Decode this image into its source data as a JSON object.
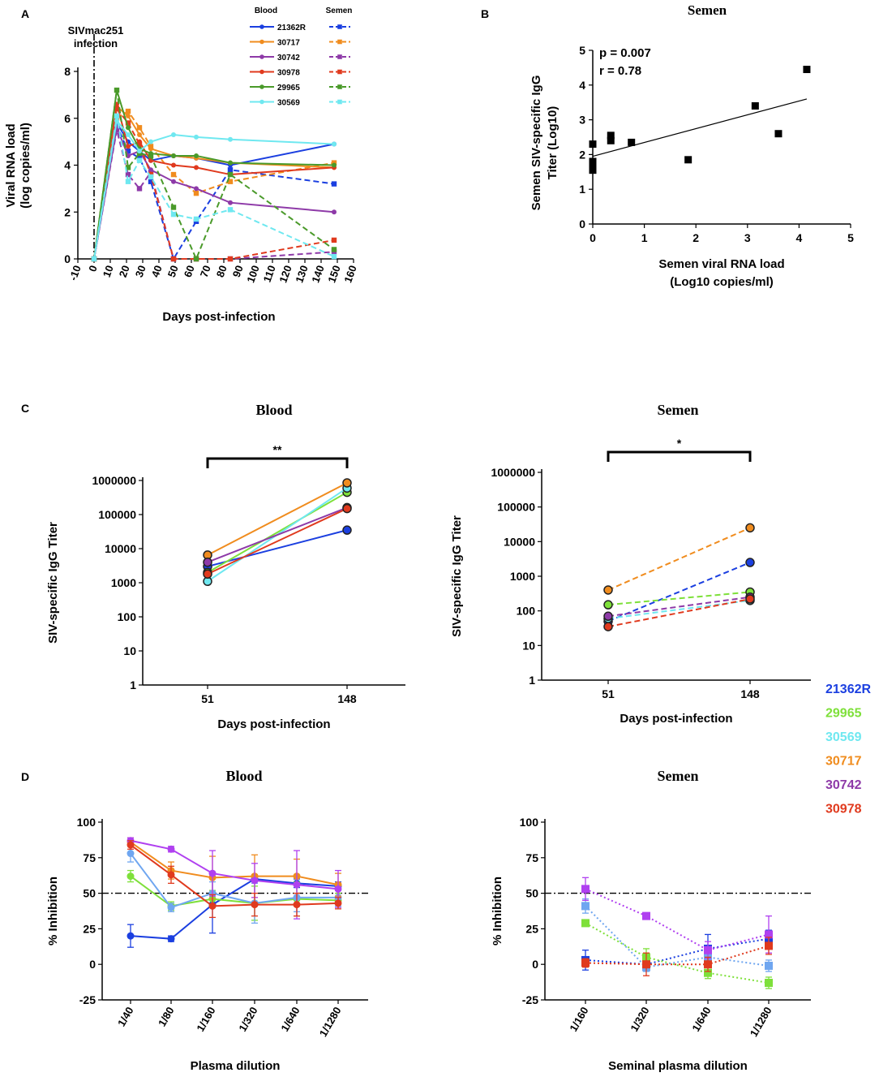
{
  "panels": {
    "A": "A",
    "B": "B",
    "C": "C",
    "D": "D"
  },
  "colors": {
    "21362R": "#1b3fe0",
    "30717": "#f08c1e",
    "30742": "#8e3aa8",
    "30978": "#e03a1e",
    "29965": "#4a9a2a",
    "30569": "#6fe8f0"
  },
  "chart_data": [
    {
      "id": "A",
      "type": "line",
      "title": "",
      "annotation": "SIVmac251\ninfection",
      "xlabel": "Days post-infection",
      "ylabel": "Viral RNA load (log copies/ml)",
      "xlim": [
        -10,
        160
      ],
      "ylim": [
        0,
        8
      ],
      "xticks": [
        "-10",
        "0",
        "10",
        "20",
        "30",
        "40",
        "50",
        "60",
        "70",
        "80",
        "90",
        "100",
        "110",
        "120",
        "130",
        "140",
        "150",
        "160"
      ],
      "yticks": [
        "0",
        "2",
        "4",
        "6",
        "8"
      ],
      "legend_headers": [
        "Blood",
        "Semen"
      ],
      "x": [
        0,
        14,
        21,
        28,
        35,
        49,
        63,
        84,
        148
      ],
      "series": [
        {
          "name": "21362R",
          "color": "#1b3fe0",
          "blood": [
            0,
            5.8,
            5.0,
            4.6,
            4.2,
            4.4,
            4.3,
            4.0,
            4.9
          ],
          "semen": [
            0,
            5.7,
            4.6,
            4.3,
            3.3,
            0,
            1.6,
            3.8,
            3.2
          ]
        },
        {
          "name": "30717",
          "color": "#f08c1e",
          "blood": [
            0,
            6.5,
            6.1,
            5.3,
            4.7,
            4.4,
            4.3,
            4.1,
            3.9
          ],
          "semen": [
            0,
            6.0,
            6.3,
            5.6,
            4.8,
            3.6,
            2.8,
            3.3,
            4.1
          ]
        },
        {
          "name": "30742",
          "color": "#8e3aa8",
          "blood": [
            0,
            5.6,
            4.4,
            4.6,
            3.8,
            3.3,
            3.0,
            2.4,
            2.0
          ],
          "semen": [
            0,
            5.5,
            3.6,
            3.0,
            3.7,
            0,
            0,
            0,
            0.3
          ]
        },
        {
          "name": "30978",
          "color": "#e03a1e",
          "blood": [
            0,
            6.6,
            4.8,
            5.0,
            4.2,
            4.0,
            3.9,
            3.6,
            3.9
          ],
          "semen": [
            0,
            6.4,
            5.8,
            4.9,
            3.6,
            0,
            0,
            0,
            0.8
          ]
        },
        {
          "name": "29965",
          "color": "#4a9a2a",
          "blood": [
            0,
            7.2,
            5.6,
            4.7,
            4.5,
            4.4,
            4.4,
            4.1,
            4.0
          ],
          "semen": [
            0,
            7.2,
            3.9,
            4.5,
            4.4,
            2.2,
            0,
            3.6,
            0.4
          ]
        },
        {
          "name": "30569",
          "color": "#6fe8f0",
          "blood": [
            0,
            5.9,
            5.3,
            4.6,
            5.0,
            5.3,
            5.2,
            5.1,
            4.9
          ],
          "semen": [
            0,
            6.1,
            3.3,
            4.2,
            3.5,
            1.9,
            1.7,
            2.1,
            0.1
          ]
        }
      ]
    },
    {
      "id": "B",
      "type": "scatter",
      "title": "Semen",
      "xlabel": "Semen viral RNA load\n(Log10 copies/ml)",
      "ylabel": "Semen SIV-specific IgG\nTiter (Log10)",
      "xlim": [
        0,
        5
      ],
      "ylim": [
        0,
        5
      ],
      "xticks": [
        "0",
        "1",
        "2",
        "3",
        "4",
        "5"
      ],
      "yticks": [
        "0",
        "1",
        "2",
        "3",
        "4",
        "5"
      ],
      "stats": [
        "p = 0.007",
        "r = 0.78"
      ],
      "points": [
        [
          0,
          2.3
        ],
        [
          0,
          1.8
        ],
        [
          0,
          1.65
        ],
        [
          0,
          1.55
        ],
        [
          0.35,
          2.55
        ],
        [
          0.35,
          2.4
        ],
        [
          0.75,
          2.35
        ],
        [
          1.85,
          1.85
        ],
        [
          3.15,
          3.4
        ],
        [
          3.6,
          2.6
        ],
        [
          4.15,
          4.45
        ]
      ],
      "fit": [
        [
          0,
          1.95
        ],
        [
          4.15,
          3.6
        ]
      ]
    },
    {
      "id": "C-blood",
      "type": "line",
      "title": "Blood",
      "xlabel": "Days post-infection",
      "ylabel": "SIV-specific IgG Titer",
      "categories": [
        "51",
        "148"
      ],
      "significance": "**",
      "log_y": true,
      "yticks": [
        "1",
        "10",
        "100",
        "1000",
        "10000",
        "100000",
        "1000000"
      ],
      "series": [
        {
          "name": "21362R",
          "color": "#1b3fe0",
          "values": [
            3000,
            35000
          ]
        },
        {
          "name": "29965",
          "color": "#7ee03a",
          "values": [
            2000,
            450000
          ]
        },
        {
          "name": "30569",
          "color": "#6fe8f0",
          "values": [
            1100,
            600000
          ]
        },
        {
          "name": "30717",
          "color": "#f08c1e",
          "values": [
            6500,
            850000
          ]
        },
        {
          "name": "30742",
          "color": "#8e3aa8",
          "values": [
            4000,
            160000
          ]
        },
        {
          "name": "30978",
          "color": "#e03a1e",
          "values": [
            1800,
            150000
          ]
        }
      ]
    },
    {
      "id": "C-semen",
      "type": "line",
      "title": "Semen",
      "dashed": true,
      "xlabel": "Days post-infection",
      "ylabel": "SIV-specific IgG Titer",
      "categories": [
        "51",
        "148"
      ],
      "significance": "*",
      "log_y": true,
      "yticks": [
        "1",
        "10",
        "100",
        "1000",
        "10000",
        "100000",
        "1000000"
      ],
      "series": [
        {
          "name": "21362R",
          "color": "#1b3fe0",
          "values": [
            50,
            2500
          ]
        },
        {
          "name": "29965",
          "color": "#7ee03a",
          "values": [
            150,
            350
          ]
        },
        {
          "name": "30569",
          "color": "#6fe8f0",
          "values": [
            60,
            200
          ]
        },
        {
          "name": "30717",
          "color": "#f08c1e",
          "values": [
            400,
            25000
          ]
        },
        {
          "name": "30742",
          "color": "#8e3aa8",
          "values": [
            70,
            250
          ]
        },
        {
          "name": "30978",
          "color": "#e03a1e",
          "values": [
            35,
            220
          ]
        }
      ]
    },
    {
      "id": "D-blood",
      "type": "line",
      "title": "Blood",
      "xlabel": "Plasma dilution",
      "ylabel": "% Inhibition",
      "categories": [
        "1/40",
        "1/80",
        "1/160",
        "1/320",
        "1/640",
        "1/1280"
      ],
      "ylim": [
        -25,
        100
      ],
      "yticks": [
        "-25",
        "0",
        "25",
        "50",
        "75",
        "100"
      ],
      "reference_line": 50,
      "series": [
        {
          "name": "21362R",
          "color": "#1b3fe0",
          "values": [
            20,
            18,
            42,
            60,
            57,
            55
          ],
          "err": [
            8,
            2,
            20,
            3,
            3,
            3
          ]
        },
        {
          "name": "29965",
          "color": "#7ee03a",
          "values": [
            62,
            41,
            46,
            43,
            46,
            45
          ],
          "err": [
            4,
            3,
            6,
            12,
            12,
            5
          ]
        },
        {
          "name": "30569",
          "color": "#6fa6f0",
          "values": [
            78,
            40,
            50,
            43,
            47,
            47
          ],
          "err": [
            6,
            3,
            8,
            14,
            10,
            6
          ]
        },
        {
          "name": "30717",
          "color": "#f08c1e",
          "values": [
            86,
            66,
            61,
            62,
            62,
            56
          ],
          "err": [
            3,
            6,
            15,
            15,
            12,
            8
          ]
        },
        {
          "name": "30742",
          "color": "#b040f0",
          "values": [
            87,
            81,
            64,
            59,
            56,
            53
          ],
          "err": [
            2,
            2,
            16,
            12,
            24,
            13
          ]
        },
        {
          "name": "30978",
          "color": "#e03a1e",
          "values": [
            84,
            63,
            41,
            42,
            42,
            43
          ],
          "err": [
            3,
            6,
            8,
            8,
            8,
            4
          ]
        }
      ]
    },
    {
      "id": "D-semen",
      "type": "line",
      "title": "Semen",
      "dotted": true,
      "xlabel": "Seminal plasma dilution",
      "ylabel": "% Inhibition",
      "categories": [
        "1/160",
        "1/320",
        "1/640",
        "1/1280"
      ],
      "ylim": [
        -25,
        100
      ],
      "yticks": [
        "-25",
        "0",
        "25",
        "50",
        "75",
        "100"
      ],
      "reference_line": 50,
      "series": [
        {
          "name": "21362R",
          "color": "#1b3fe0",
          "values": [
            3,
            0,
            11,
            18
          ],
          "err": [
            7,
            3,
            10,
            6
          ]
        },
        {
          "name": "29965",
          "color": "#7ee03a",
          "values": [
            29,
            5,
            -6,
            -13
          ],
          "err": [
            2,
            6,
            4,
            4
          ]
        },
        {
          "name": "30569",
          "color": "#6fa6f0",
          "values": [
            41,
            -2,
            5,
            -1
          ],
          "err": [
            5,
            3,
            6,
            4
          ]
        },
        {
          "name": "30742",
          "color": "#b040f0",
          "values": [
            53,
            34,
            10,
            21
          ],
          "err": [
            8,
            2,
            6,
            13
          ]
        },
        {
          "name": "30978",
          "color": "#e03a1e",
          "values": [
            1,
            0,
            0,
            13
          ],
          "err": [
            3,
            8,
            5,
            6
          ]
        }
      ]
    }
  ],
  "legend_side": [
    {
      "name": "21362R",
      "color": "#1b3fe0"
    },
    {
      "name": "29965",
      "color": "#7ee03a"
    },
    {
      "name": "30569",
      "color": "#6fe8f0"
    },
    {
      "name": "30717",
      "color": "#f08c1e"
    },
    {
      "name": "30742",
      "color": "#8e3aa8"
    },
    {
      "name": "30978",
      "color": "#e03a1e"
    }
  ]
}
